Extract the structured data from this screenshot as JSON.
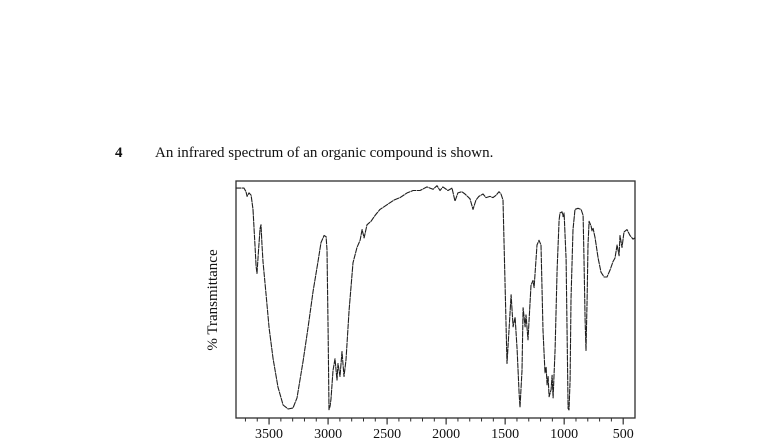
{
  "page": {
    "background": "#ffffff"
  },
  "question": {
    "number": "4",
    "text": "An infrared spectrum of an organic compound is shown."
  },
  "chart_data": {
    "type": "line",
    "title": "",
    "xlabel": "",
    "ylabel": "% Transmittance",
    "legend": "none",
    "grid": false,
    "x_axis": {
      "orientation": "reversed",
      "left": 3780,
      "right": 400,
      "major_ticks": [
        3500,
        3000,
        2500,
        2000,
        1500,
        1000,
        500
      ],
      "minor_tick_start": 3700,
      "minor_tick_end": 500,
      "minor_tick_step": 100
    },
    "y_axis": {
      "min": 0,
      "max": 100,
      "ticks": []
    },
    "colors": {
      "curve": "#1f1f1f",
      "frame": "#2e2e2e",
      "text": "#111111"
    },
    "series": [
      {
        "name": "infrared-spectrum-transmittance",
        "points": [
          [
            3780,
            97
          ],
          [
            3712,
            97
          ],
          [
            3695,
            95.5
          ],
          [
            3686,
            93.5
          ],
          [
            3670,
            95
          ],
          [
            3652,
            94
          ],
          [
            3636,
            88
          ],
          [
            3618,
            72
          ],
          [
            3610,
            64
          ],
          [
            3602,
            61
          ],
          [
            3590,
            70
          ],
          [
            3576,
            80
          ],
          [
            3568,
            81.5
          ],
          [
            3560,
            73
          ],
          [
            3551,
            66
          ],
          [
            3525,
            52
          ],
          [
            3500,
            38
          ],
          [
            3466,
            25
          ],
          [
            3424,
            13
          ],
          [
            3381,
            5.5
          ],
          [
            3339,
            3.8
          ],
          [
            3297,
            4.2
          ],
          [
            3263,
            8.5
          ],
          [
            3212,
            24
          ],
          [
            3170,
            38
          ],
          [
            3127,
            53.5
          ],
          [
            3085,
            66
          ],
          [
            3060,
            74
          ],
          [
            3034,
            77
          ],
          [
            3017,
            76.5
          ],
          [
            3009,
            71
          ],
          [
            3000,
            37
          ],
          [
            2992,
            3.5
          ],
          [
            2983,
            5
          ],
          [
            2975,
            8
          ],
          [
            2958,
            20
          ],
          [
            2941,
            25
          ],
          [
            2924,
            16
          ],
          [
            2916,
            23
          ],
          [
            2899,
            17.5
          ],
          [
            2882,
            28
          ],
          [
            2865,
            17.5
          ],
          [
            2848,
            24.5
          ],
          [
            2822,
            45.5
          ],
          [
            2789,
            65.5
          ],
          [
            2755,
            72
          ],
          [
            2729,
            75
          ],
          [
            2712,
            79.5
          ],
          [
            2695,
            76
          ],
          [
            2670,
            81.5
          ],
          [
            2636,
            83
          ],
          [
            2602,
            85.5
          ],
          [
            2560,
            88
          ],
          [
            2500,
            90
          ],
          [
            2441,
            92
          ],
          [
            2390,
            93
          ],
          [
            2331,
            95
          ],
          [
            2280,
            96
          ],
          [
            2221,
            96
          ],
          [
            2162,
            97.5
          ],
          [
            2111,
            96.5
          ],
          [
            2077,
            98
          ],
          [
            2052,
            96
          ],
          [
            2027,
            97.5
          ],
          [
            1984,
            96
          ],
          [
            1950,
            97
          ],
          [
            1925,
            91.5
          ],
          [
            1900,
            95
          ],
          [
            1866,
            95.5
          ],
          [
            1840,
            94.5
          ],
          [
            1798,
            92.5
          ],
          [
            1772,
            88
          ],
          [
            1747,
            92
          ],
          [
            1722,
            93.5
          ],
          [
            1688,
            94.5
          ],
          [
            1662,
            93
          ],
          [
            1628,
            93.5
          ],
          [
            1603,
            93
          ],
          [
            1577,
            94
          ],
          [
            1552,
            95.5
          ],
          [
            1535,
            94.5
          ],
          [
            1518,
            92
          ],
          [
            1501,
            57.5
          ],
          [
            1484,
            23
          ],
          [
            1467,
            37
          ],
          [
            1450,
            52
          ],
          [
            1433,
            38.5
          ],
          [
            1416,
            42.5
          ],
          [
            1399,
            29
          ],
          [
            1382,
            10.5
          ],
          [
            1374,
            4.5
          ],
          [
            1357,
            20
          ],
          [
            1348,
            46.5
          ],
          [
            1331,
            38.5
          ],
          [
            1323,
            43.5
          ],
          [
            1306,
            33
          ],
          [
            1281,
            56
          ],
          [
            1264,
            58
          ],
          [
            1255,
            55
          ],
          [
            1230,
            73
          ],
          [
            1213,
            75
          ],
          [
            1196,
            73
          ],
          [
            1179,
            37
          ],
          [
            1162,
            19
          ],
          [
            1153,
            21.5
          ],
          [
            1145,
            14
          ],
          [
            1136,
            17.5
          ],
          [
            1128,
            9
          ],
          [
            1111,
            12
          ],
          [
            1102,
            18
          ],
          [
            1094,
            8.5
          ],
          [
            1077,
            29
          ],
          [
            1060,
            62.5
          ],
          [
            1043,
            83.5
          ],
          [
            1035,
            86.5
          ],
          [
            1018,
            87
          ],
          [
            1009,
            85
          ],
          [
            1001,
            86.5
          ],
          [
            984,
            67
          ],
          [
            967,
            4
          ],
          [
            959,
            3.4
          ],
          [
            950,
            16
          ],
          [
            942,
            50
          ],
          [
            925,
            79.5
          ],
          [
            908,
            88
          ],
          [
            883,
            88.5
          ],
          [
            857,
            88
          ],
          [
            840,
            85.5
          ],
          [
            832,
            67
          ],
          [
            823,
            41.5
          ],
          [
            815,
            28.5
          ],
          [
            806,
            50
          ],
          [
            798,
            73
          ],
          [
            789,
            83
          ],
          [
            772,
            81
          ],
          [
            764,
            79
          ],
          [
            755,
            80
          ],
          [
            738,
            76
          ],
          [
            713,
            67.5
          ],
          [
            688,
            61.5
          ],
          [
            662,
            59.5
          ],
          [
            637,
            59.5
          ],
          [
            611,
            62.5
          ],
          [
            586,
            66
          ],
          [
            569,
            67.5
          ],
          [
            552,
            73
          ],
          [
            535,
            68.5
          ],
          [
            527,
            77
          ],
          [
            510,
            72
          ],
          [
            493,
            78.5
          ],
          [
            468,
            79.5
          ],
          [
            442,
            77
          ],
          [
            417,
            75.5
          ],
          [
            400,
            76
          ]
        ]
      }
    ]
  }
}
